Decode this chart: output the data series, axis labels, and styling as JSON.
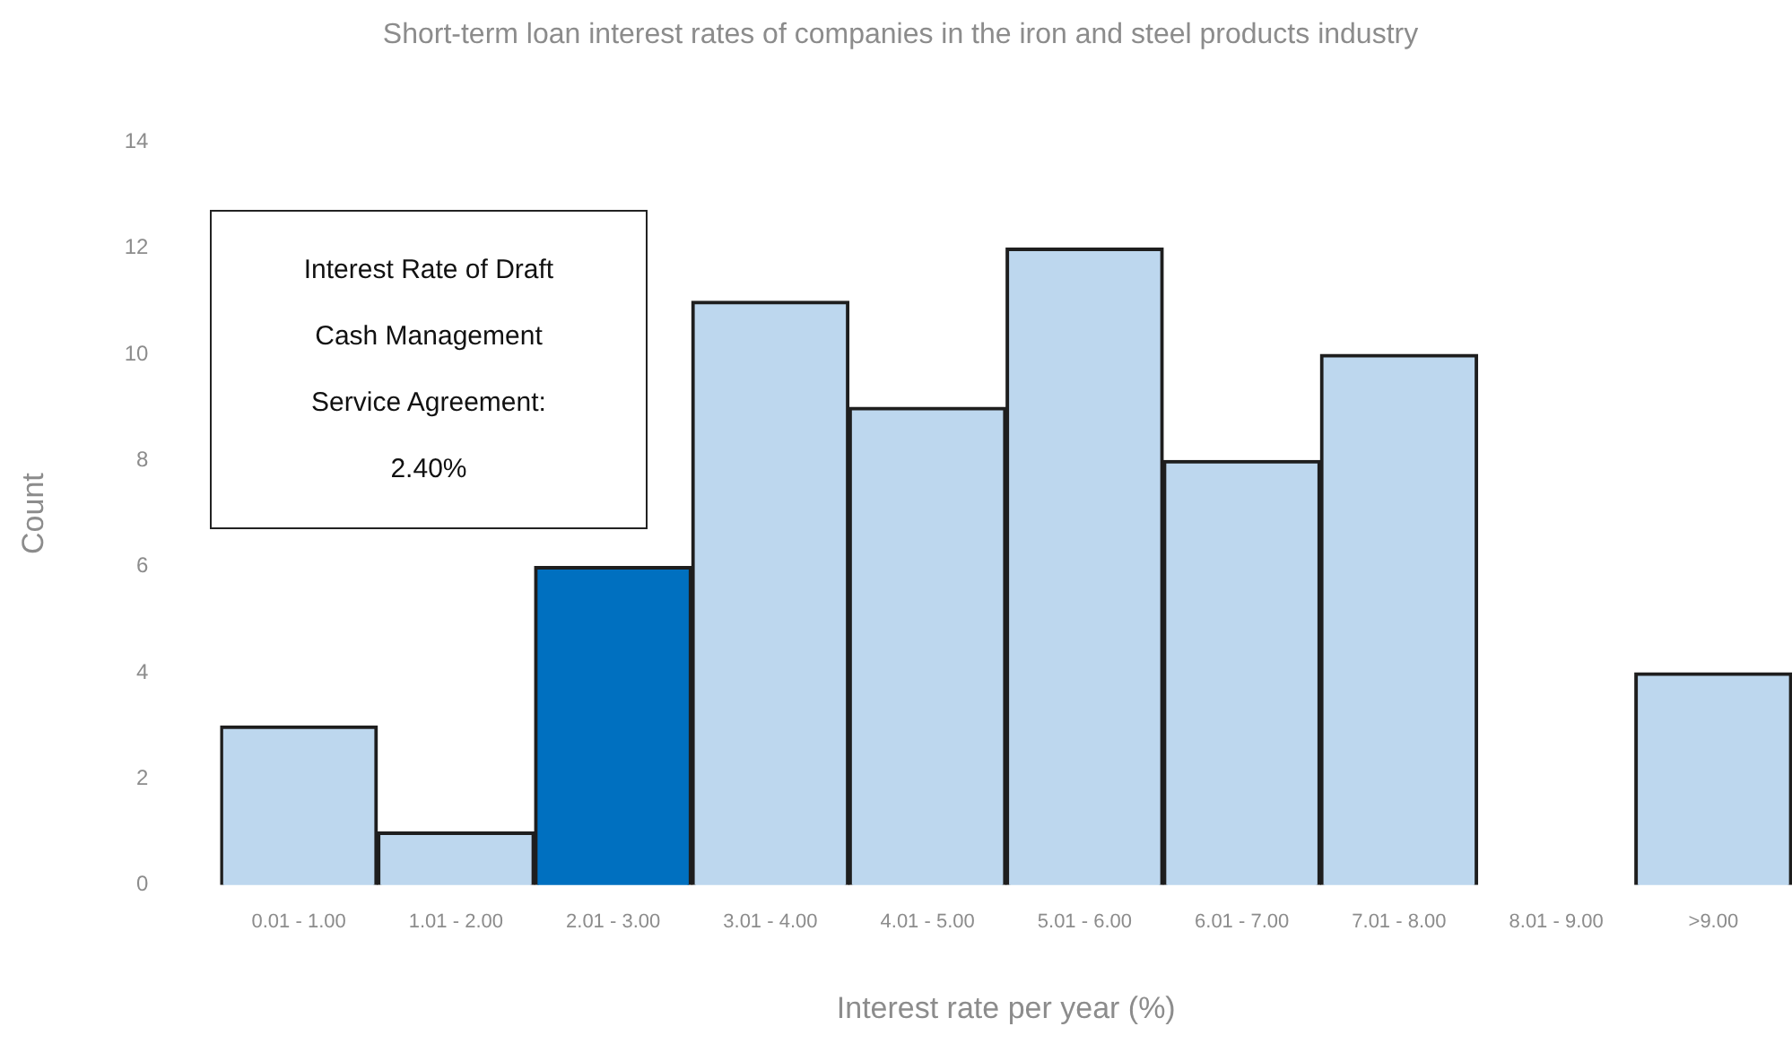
{
  "chart_data": {
    "type": "bar",
    "title": "Short-term loan interest rates of companies in the iron and steel products industry",
    "xlabel": "Interest rate per year (%)",
    "ylabel": "Count",
    "categories": [
      "0.01 - 1.00",
      "1.01 - 2.00",
      "2.01 - 3.00",
      "3.01 - 4.00",
      "4.01 - 5.00",
      "5.01 - 6.00",
      "6.01 - 7.00",
      "7.01 - 8.00",
      "8.01 - 9.00",
      ">9.00"
    ],
    "values": [
      3,
      1,
      6,
      11,
      9,
      12,
      8,
      10,
      0,
      4
    ],
    "colors": [
      "#bdd7ee",
      "#bdd7ee",
      "#0070c0",
      "#bdd7ee",
      "#bdd7ee",
      "#bdd7ee",
      "#bdd7ee",
      "#bdd7ee",
      "#bdd7ee",
      "#bdd7ee"
    ],
    "ylim": [
      0,
      14
    ],
    "yticks": [
      0,
      2,
      4,
      6,
      8,
      10,
      12,
      14
    ],
    "grid": false,
    "legend": false,
    "annotations": [
      "Interest Rate of Draft Cash Management Service Agreement: 2.40%"
    ]
  }
}
